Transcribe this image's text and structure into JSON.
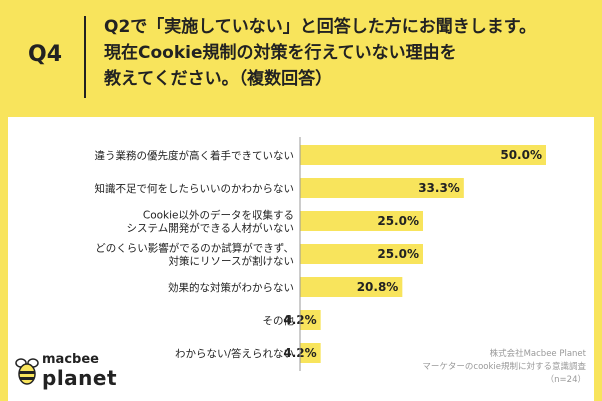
{
  "header": {
    "q_label": "Q4",
    "question_lines": [
      "Q2で「実施していない」と回答した方にお聞きします。",
      "現在Cookie規制の対策を行えていない理由を",
      "教えてください。（複数回答）"
    ]
  },
  "chart_data": {
    "type": "bar",
    "orientation": "horizontal",
    "categories": [
      [
        "違う業務の優先度が高く着手できていない"
      ],
      [
        "知識不足で何をしたらいいのかわからない"
      ],
      [
        "Cookie以外のデータを収集する",
        "システム開発ができる人材がいない"
      ],
      [
        "どのくらい影響がでるのか試算ができず、",
        "対策にリソースが割けない"
      ],
      [
        "効果的な対策がわからない"
      ],
      [
        "その他"
      ],
      [
        "わからない/答えられない"
      ]
    ],
    "values": [
      50.0,
      33.3,
      25.0,
      25.0,
      20.8,
      4.2,
      4.2
    ],
    "value_labels": [
      "50.0%",
      "33.3%",
      "25.0%",
      "25.0%",
      "20.8%",
      "4.2%",
      "4.2%"
    ],
    "xlim": [
      0,
      50
    ],
    "bar_color": "#F8E45C",
    "grid": false
  },
  "logo": {
    "top": "macbee",
    "bottom": "planet"
  },
  "source": {
    "lines": [
      "株式会社Macbee Planet",
      "マーケターのcookie規制に対する意識調査",
      "（n=24）"
    ]
  }
}
